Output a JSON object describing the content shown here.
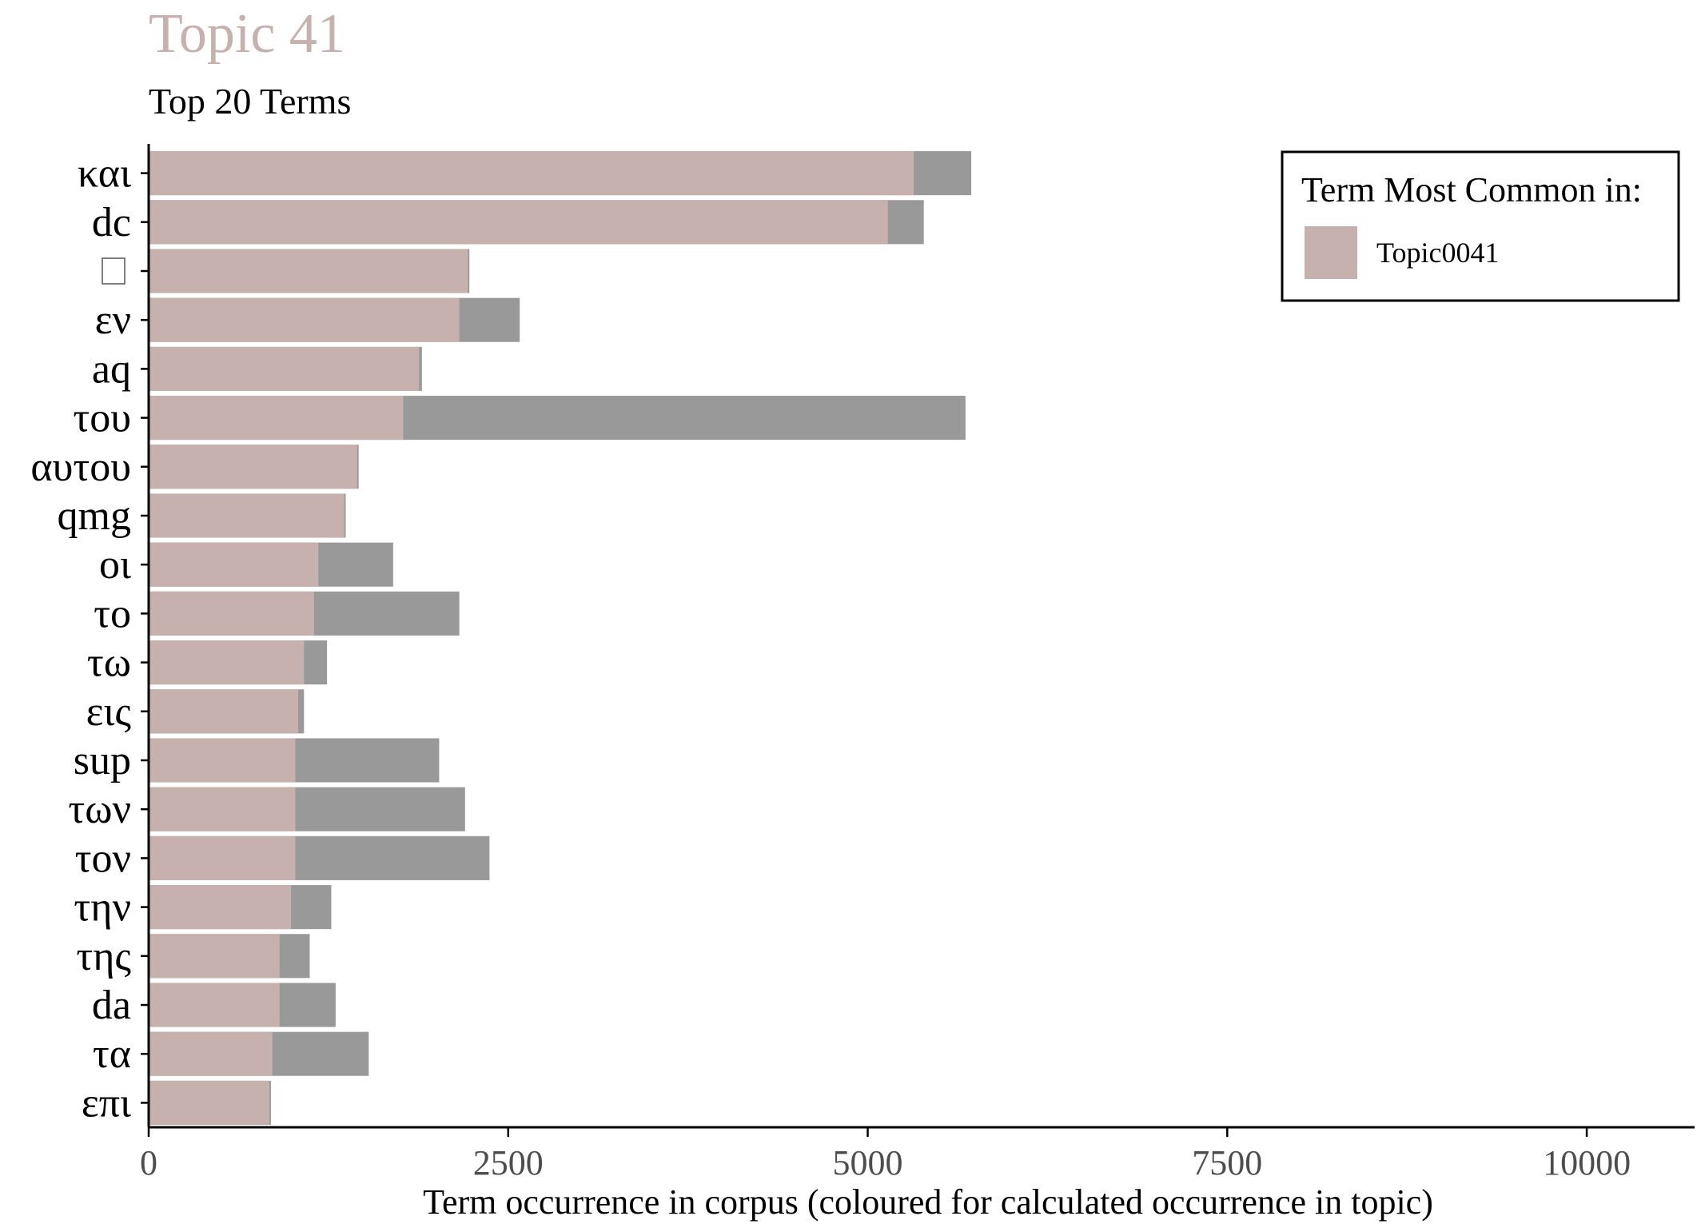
{
  "colors": {
    "topic": "#c7b1af",
    "corpus": "#999999",
    "axis": "#000000",
    "tick_label": "#4d4d4d",
    "background": "#ffffff"
  },
  "chart_data": {
    "type": "bar",
    "orientation": "horizontal",
    "title": "Topic 41",
    "subtitle": "Top 20 Terms",
    "xlabel": "Term occurrence in corpus (coloured for calculated occurrence in topic)",
    "ylabel": "",
    "xlim": [
      0,
      10750
    ],
    "xticks": [
      0,
      2500,
      5000,
      7500,
      10000
    ],
    "xtick_labels": [
      "0",
      "2500",
      "5000",
      "7500",
      "10000"
    ],
    "grid": false,
    "legend": {
      "title": "Term Most Common in:",
      "placement": "top-right",
      "entries": [
        "Topic0041"
      ]
    },
    "categories": [
      "και",
      "dc",
      "",
      "εν",
      "aq",
      "του",
      "αυτου",
      "qmg",
      "οι",
      "το",
      "τω",
      "εις",
      "sup",
      "των",
      "τον",
      "την",
      "της",
      "da",
      "τα",
      "επι"
    ],
    "series": [
      {
        "name": "Topic0041",
        "color": "#c7b1af",
        "values": [
          5320,
          5140,
          2220,
          2160,
          1880,
          1770,
          1450,
          1360,
          1180,
          1150,
          1080,
          1040,
          1020,
          1020,
          1020,
          990,
          910,
          910,
          860,
          840
        ]
      },
      {
        "color": "#999999",
        "values": [
          5720,
          5390,
          2230,
          2580,
          1900,
          5680,
          1460,
          1370,
          1700,
          2160,
          1240,
          1080,
          2020,
          2200,
          2370,
          1270,
          1120,
          1300,
          1530,
          850
        ]
      }
    ]
  }
}
